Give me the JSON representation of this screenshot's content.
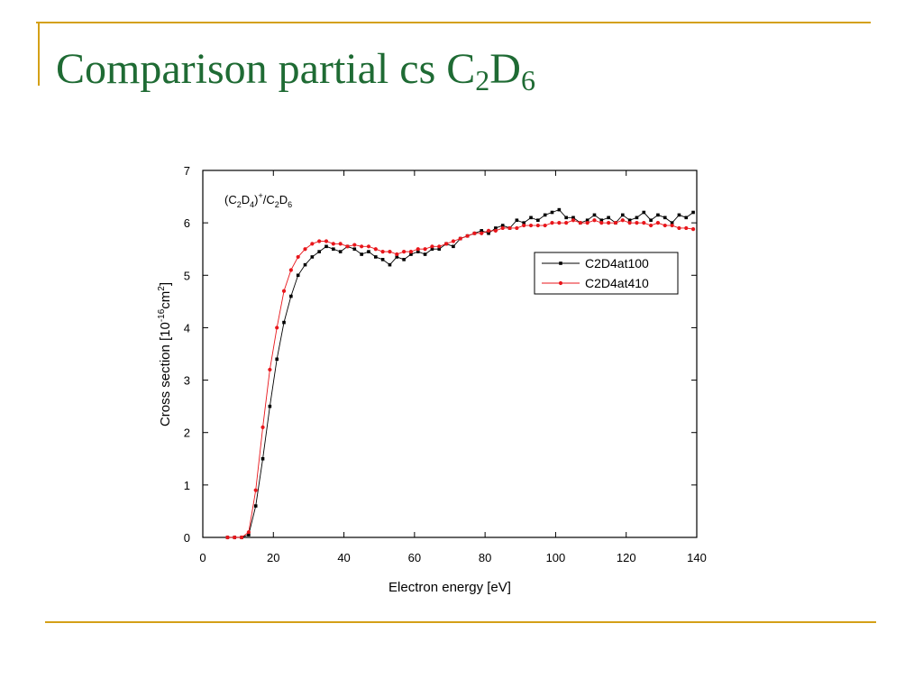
{
  "chart_data": {
    "type": "line",
    "title": [
      "Comparison partial cs C",
      "2",
      "D",
      "6"
    ],
    "annotation": [
      "(C",
      "2",
      "D",
      "4",
      ")",
      "+",
      "/C",
      "2",
      "D",
      "6"
    ],
    "x_label": "Electron energy [eV]",
    "y_label": [
      "Cross section [10",
      "-16",
      "cm",
      "2",
      "]"
    ],
    "x": [
      7,
      9,
      11,
      13,
      15,
      17,
      19,
      21,
      23,
      25,
      27,
      29,
      31,
      33,
      35,
      37,
      39,
      41,
      43,
      45,
      47,
      49,
      51,
      53,
      55,
      57,
      59,
      61,
      63,
      65,
      67,
      69,
      71,
      73,
      75,
      77,
      79,
      81,
      83,
      85,
      87,
      89,
      91,
      93,
      95,
      97,
      99,
      101,
      103,
      105,
      107,
      109,
      111,
      113,
      115,
      117,
      119,
      121,
      123,
      125,
      127,
      129,
      131,
      133,
      135,
      137,
      139
    ],
    "series": [
      {
        "name": "C2D4at100",
        "color": "#000000",
        "marker": "square",
        "values": [
          0,
          0,
          0,
          0.05,
          0.6,
          1.5,
          2.5,
          3.4,
          4.1,
          4.6,
          5.0,
          5.2,
          5.35,
          5.45,
          5.55,
          5.5,
          5.45,
          5.55,
          5.5,
          5.4,
          5.45,
          5.35,
          5.3,
          5.2,
          5.35,
          5.3,
          5.4,
          5.45,
          5.4,
          5.5,
          5.5,
          5.6,
          5.55,
          5.7,
          5.75,
          5.8,
          5.85,
          5.8,
          5.9,
          5.95,
          5.9,
          6.05,
          6.0,
          6.1,
          6.05,
          6.15,
          6.2,
          6.25,
          6.1,
          6.1,
          6.0,
          6.05,
          6.15,
          6.05,
          6.1,
          6.0,
          6.15,
          6.05,
          6.1,
          6.2,
          6.05,
          6.15,
          6.1,
          6.0,
          6.15,
          6.1,
          6.2
        ]
      },
      {
        "name": "C2D4at410",
        "color": "#e8161b",
        "marker": "circle",
        "values": [
          0,
          0,
          0,
          0.1,
          0.9,
          2.1,
          3.2,
          4.0,
          4.7,
          5.1,
          5.35,
          5.5,
          5.6,
          5.65,
          5.65,
          5.6,
          5.6,
          5.55,
          5.58,
          5.55,
          5.55,
          5.5,
          5.45,
          5.45,
          5.4,
          5.45,
          5.45,
          5.5,
          5.5,
          5.55,
          5.55,
          5.6,
          5.65,
          5.7,
          5.75,
          5.8,
          5.8,
          5.85,
          5.85,
          5.9,
          5.9,
          5.9,
          5.95,
          5.95,
          5.95,
          5.95,
          6.0,
          6.0,
          6.0,
          6.05,
          6.0,
          6.0,
          6.05,
          6.0,
          6.0,
          6.0,
          6.05,
          6.0,
          6.0,
          6.0,
          5.95,
          6.0,
          5.95,
          5.95,
          5.9,
          5.9,
          5.88
        ]
      }
    ],
    "xlim": [
      0,
      140
    ],
    "xticks": [
      0,
      20,
      40,
      60,
      80,
      100,
      120,
      140
    ],
    "ylim": [
      0,
      7
    ],
    "yticks": [
      0,
      1,
      2,
      3,
      4,
      5,
      6,
      7
    ],
    "legend": "upper right"
  }
}
